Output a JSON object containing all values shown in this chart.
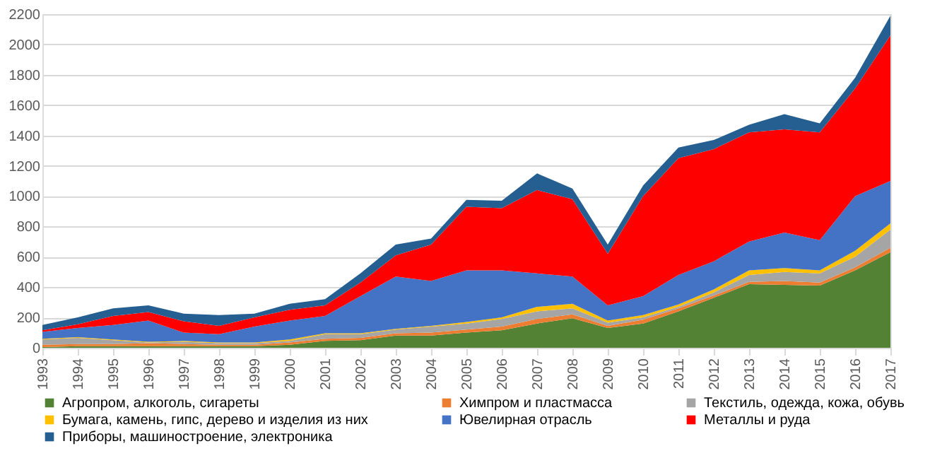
{
  "chart_data": {
    "type": "area",
    "stacked": true,
    "categories": [
      "1993",
      "1994",
      "1995",
      "1996",
      "1997",
      "1998",
      "1999",
      "2000",
      "2001",
      "2002",
      "2003",
      "2004",
      "2005",
      "2006",
      "2007",
      "2008",
      "2009",
      "2010",
      "2011",
      "2012",
      "2013",
      "2014",
      "2015",
      "2016",
      "2017"
    ],
    "ylim": [
      0,
      2200
    ],
    "yticks": [
      0,
      200,
      400,
      600,
      800,
      1000,
      1200,
      1400,
      1600,
      1800,
      2000,
      2200
    ],
    "grid": "y",
    "legend": "bottom",
    "series": [
      {
        "name": "Агропром, алкоголь, сигареты",
        "color": "#548235",
        "values": [
          5,
          10,
          10,
          10,
          10,
          10,
          10,
          20,
          45,
          50,
          80,
          80,
          100,
          115,
          160,
          195,
          130,
          160,
          240,
          330,
          420,
          415,
          410,
          510,
          630
        ]
      },
      {
        "name": "Химпром и пластмасса",
        "color": "#ed7d31",
        "values": [
          15,
          15,
          15,
          20,
          15,
          10,
          10,
          15,
          15,
          15,
          15,
          20,
          20,
          25,
          30,
          25,
          15,
          25,
          20,
          15,
          15,
          25,
          20,
          20,
          30
        ]
      },
      {
        "name": "Текстиль, одежда, кожа, обувь",
        "color": "#a5a5a5",
        "values": [
          35,
          40,
          25,
          5,
          15,
          10,
          10,
          10,
          30,
          25,
          25,
          40,
          40,
          50,
          50,
          40,
          20,
          15,
          10,
          20,
          45,
          60,
          60,
          70,
          120
        ]
      },
      {
        "name": "Бумага, камень, гипс, дерево и изделия из них",
        "color": "#ffc000",
        "values": [
          5,
          5,
          5,
          5,
          5,
          5,
          5,
          10,
          5,
          5,
          5,
          5,
          10,
          10,
          30,
          30,
          15,
          15,
          15,
          20,
          30,
          25,
          20,
          40,
          40
        ]
      },
      {
        "name": "Ювелирная отрасль",
        "color": "#4472c4",
        "values": [
          45,
          60,
          95,
          140,
          55,
          55,
          105,
          125,
          115,
          245,
          345,
          295,
          340,
          310,
          220,
          180,
          100,
          125,
          195,
          185,
          190,
          235,
          200,
          360,
          280
        ]
      },
      {
        "name": "Металлы и руда",
        "color": "#ff0000",
        "values": [
          10,
          25,
          60,
          55,
          75,
          55,
          60,
          70,
          70,
          90,
          140,
          240,
          420,
          410,
          550,
          510,
          340,
          660,
          770,
          740,
          720,
          680,
          710,
          710,
          960
        ]
      },
      {
        "name": "Приборы, машиностроение, электроника",
        "color": "#255e91",
        "values": [
          35,
          45,
          50,
          45,
          50,
          70,
          25,
          40,
          40,
          60,
          70,
          40,
          45,
          50,
          110,
          70,
          60,
          70,
          70,
          60,
          50,
          100,
          60,
          70,
          130
        ]
      }
    ]
  }
}
